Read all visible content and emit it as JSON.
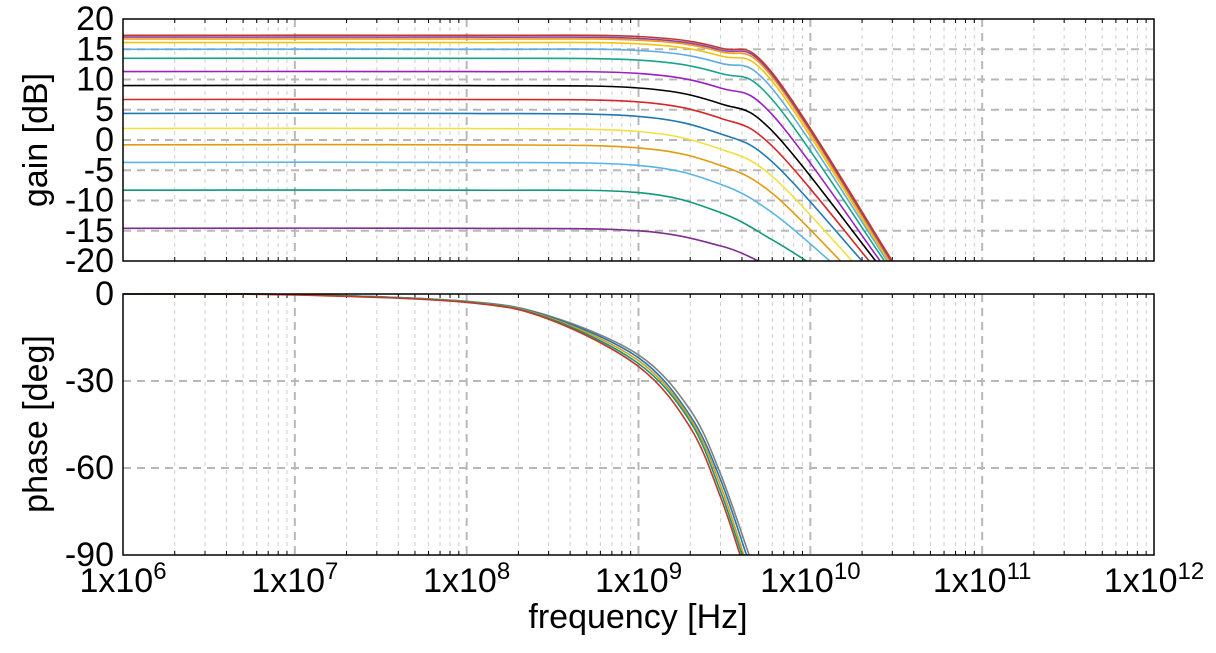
{
  "chart_data": [
    {
      "type": "line",
      "title": "",
      "xlabel": "",
      "ylabel": "gain [dB]",
      "xscale": "log",
      "xlim": [
        1000000,
        1000000000000
      ],
      "ylim": [
        -20,
        20
      ],
      "yticks": [
        20,
        15,
        10,
        5,
        0,
        -5,
        -10,
        -15,
        -20
      ],
      "grid": true,
      "legend": "none",
      "series": [
        {
          "color": "#7e2f8e",
          "values": [
            [
              1000000,
              -14.6
            ],
            [
              100000000,
              -14.6
            ],
            [
              1000000000,
              -15.0
            ],
            [
              3000000000,
              -17.5
            ],
            [
              5000000000,
              -20
            ]
          ]
        },
        {
          "color": "#11997a",
          "values": [
            [
              1000000,
              -8.3
            ],
            [
              100000000,
              -8.3
            ],
            [
              1000000000,
              -8.7
            ],
            [
              3000000000,
              -12.0
            ],
            [
              6000000000,
              -16.5
            ],
            [
              9500000000,
              -20
            ]
          ]
        },
        {
          "color": "#5ab4e6",
          "values": [
            [
              1000000,
              -3.7
            ],
            [
              100000000,
              -3.7
            ],
            [
              1000000000,
              -4.2
            ],
            [
              3000000000,
              -7.3
            ],
            [
              6000000000,
              -12.0
            ],
            [
              13000000000,
              -20
            ]
          ]
        },
        {
          "color": "#e09b10",
          "values": [
            [
              1000000,
              -0.8
            ],
            [
              100000000,
              -0.8
            ],
            [
              1000000000,
              -1.3
            ],
            [
              3000000000,
              -4.2
            ],
            [
              6000000000,
              -8.8
            ],
            [
              15000000000,
              -20
            ]
          ]
        },
        {
          "color": "#f0e040",
          "values": [
            [
              1000000,
              1.9
            ],
            [
              100000000,
              1.9
            ],
            [
              1000000000,
              1.4
            ],
            [
              3000000000,
              -1.5
            ],
            [
              6000000000,
              -6.0
            ],
            [
              17500000000,
              -20
            ]
          ]
        },
        {
          "color": "#1f77b4",
          "values": [
            [
              1000000,
              4.4
            ],
            [
              100000000,
              4.4
            ],
            [
              1000000000,
              3.9
            ],
            [
              3000000000,
              1.0
            ],
            [
              6000000000,
              -3.6
            ],
            [
              20000000000,
              -20
            ]
          ]
        },
        {
          "color": "#d62728",
          "values": [
            [
              1000000,
              6.7
            ],
            [
              100000000,
              6.7
            ],
            [
              1000000000,
              6.3
            ],
            [
              3000000000,
              3.6
            ],
            [
              6000000000,
              -1.0
            ],
            [
              22000000000,
              -20
            ]
          ]
        },
        {
          "color": "#000000",
          "values": [
            [
              1000000,
              9.0
            ],
            [
              100000000,
              9.0
            ],
            [
              1000000000,
              8.6
            ],
            [
              3000000000,
              6.0
            ],
            [
              6000000000,
              1.5
            ],
            [
              24000000000,
              -20
            ]
          ]
        },
        {
          "color": "#9b1fc0",
          "values": [
            [
              1000000,
              11.3
            ],
            [
              100000000,
              11.3
            ],
            [
              1000000000,
              11.0
            ],
            [
              3000000000,
              8.6
            ],
            [
              6000000000,
              4.2
            ],
            [
              25500000000,
              -20
            ]
          ]
        },
        {
          "color": "#17a589",
          "values": [
            [
              1000000,
              13.5
            ],
            [
              100000000,
              13.5
            ],
            [
              1000000000,
              13.2
            ],
            [
              3000000000,
              11.0
            ],
            [
              6000000000,
              6.7
            ],
            [
              27000000000,
              -20
            ]
          ]
        },
        {
          "color": "#5dade2",
          "values": [
            [
              1000000,
              15.0
            ],
            [
              100000000,
              15.0
            ],
            [
              1000000000,
              14.8
            ],
            [
              3000000000,
              12.7
            ],
            [
              6000000000,
              8.5
            ],
            [
              28000000000,
              -20
            ]
          ]
        },
        {
          "color": "#f1c40f",
          "values": [
            [
              1000000,
              16.1
            ],
            [
              100000000,
              16.1
            ],
            [
              1000000000,
              15.9
            ],
            [
              3000000000,
              13.9
            ],
            [
              6000000000,
              9.7
            ],
            [
              28500000000,
              -20
            ]
          ]
        },
        {
          "color": "#f39c12",
          "values": [
            [
              1000000,
              16.7
            ],
            [
              100000000,
              16.7
            ],
            [
              1000000000,
              16.5
            ],
            [
              3000000000,
              14.6
            ],
            [
              6000000000,
              10.4
            ],
            [
              29000000000,
              -20
            ]
          ]
        },
        {
          "color": "#8e44ad",
          "values": [
            [
              1000000,
              17.0
            ],
            [
              100000000,
              17.0
            ],
            [
              1000000000,
              16.8
            ],
            [
              3000000000,
              14.9
            ],
            [
              6000000000,
              10.8
            ],
            [
              29500000000,
              -20
            ]
          ]
        },
        {
          "color": "#c0392b",
          "values": [
            [
              1000000,
              17.3
            ],
            [
              100000000,
              17.3
            ],
            [
              1000000000,
              17.1
            ],
            [
              3000000000,
              15.2
            ],
            [
              6000000000,
              11.1
            ],
            [
              30000000000,
              -20
            ]
          ]
        }
      ]
    },
    {
      "type": "line",
      "title": "",
      "xlabel": "frequency [Hz]",
      "ylabel": "phase [deg]",
      "xscale": "log",
      "xlim": [
        1000000,
        1000000000000
      ],
      "ylim": [
        -90,
        0
      ],
      "yticks": [
        0,
        -30,
        -60,
        -90
      ],
      "xticks": [
        {
          "base": "1x10",
          "exp": "6"
        },
        {
          "base": "1x10",
          "exp": "7"
        },
        {
          "base": "1x10",
          "exp": "8"
        },
        {
          "base": "1x10",
          "exp": "9"
        },
        {
          "base": "1x10",
          "exp": "10"
        },
        {
          "base": "1x10",
          "exp": "11"
        },
        {
          "base": "1x10",
          "exp": "12"
        }
      ],
      "grid": true,
      "legend": "none",
      "series": [
        {
          "color": "#7f7f7f",
          "values": [
            [
              1000000,
              0
            ],
            [
              10000000,
              -0.2
            ],
            [
              100000000,
              -2.5
            ],
            [
              300000000,
              -7.5
            ],
            [
              1000000000,
              -21
            ],
            [
              2000000000,
              -40
            ],
            [
              3000000000,
              -62
            ],
            [
              4400000000,
              -90
            ]
          ]
        },
        {
          "color": "#1f77b4",
          "values": [
            [
              1000000,
              0
            ],
            [
              10000000,
              -0.2
            ],
            [
              100000000,
              -2.6
            ],
            [
              300000000,
              -7.8
            ],
            [
              1000000000,
              -22
            ],
            [
              2000000000,
              -42
            ],
            [
              3000000000,
              -64
            ],
            [
              4250000000,
              -90
            ]
          ]
        },
        {
          "color": "#e09b10",
          "values": [
            [
              1000000,
              0
            ],
            [
              10000000,
              -0.2
            ],
            [
              100000000,
              -2.7
            ],
            [
              300000000,
              -8.1
            ],
            [
              1000000000,
              -23
            ],
            [
              2000000000,
              -43
            ],
            [
              3000000000,
              -66
            ],
            [
              4100000000,
              -90
            ]
          ]
        },
        {
          "color": "#11997a",
          "values": [
            [
              1000000,
              0
            ],
            [
              10000000,
              -0.2
            ],
            [
              100000000,
              -2.8
            ],
            [
              300000000,
              -8.4
            ],
            [
              1000000000,
              -24
            ],
            [
              2000000000,
              -44
            ],
            [
              3000000000,
              -68
            ],
            [
              4000000000,
              -90
            ]
          ]
        },
        {
          "color": "#c0392b",
          "values": [
            [
              1000000,
              0
            ],
            [
              10000000,
              -0.3
            ],
            [
              100000000,
              -2.9
            ],
            [
              300000000,
              -8.7
            ],
            [
              1000000000,
              -25
            ],
            [
              2000000000,
              -46
            ],
            [
              3000000000,
              -70
            ],
            [
              3900000000,
              -90
            ]
          ]
        }
      ]
    }
  ],
  "page": {
    "gain_ylabel": "gain [dB]",
    "phase_ylabel": "phase [deg]",
    "xlabel": "frequency [Hz]"
  }
}
